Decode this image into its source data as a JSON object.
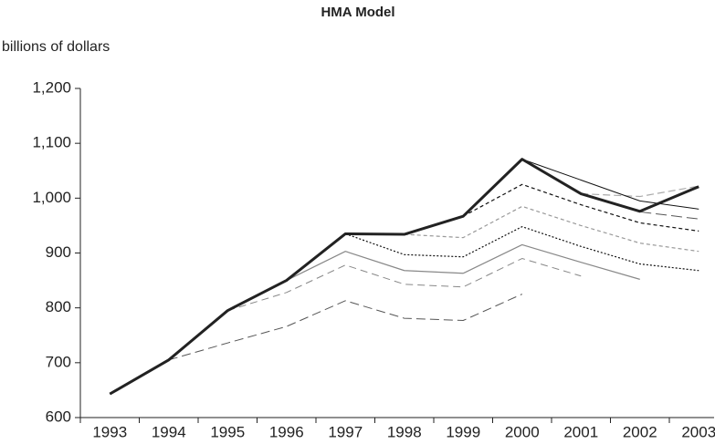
{
  "chart_data": {
    "type": "line",
    "title": "HMA Model",
    "y_label": "billions of dollars",
    "categories": [
      "1993",
      "1994",
      "1995",
      "1996",
      "1997",
      "1998",
      "1999",
      "2000",
      "2001",
      "2002",
      "2003"
    ],
    "ylim": [
      600,
      1200
    ],
    "yticks": [
      600,
      700,
      800,
      900,
      {
        "value": 1000,
        "label": "1,000"
      },
      {
        "value": 1100,
        "label": "1,100"
      },
      {
        "value": 1200,
        "label": "1,200"
      }
    ],
    "grid": false,
    "series": [
      {
        "color": "#555555",
        "dash": "10,5",
        "width": 1,
        "values": [
          null,
          705,
          736,
          766,
          813,
          781,
          777,
          825,
          null,
          null,
          null
        ]
      },
      {
        "color": "#888888",
        "dash": "8,5",
        "width": 1,
        "values": [
          null,
          null,
          795,
          828,
          878,
          843,
          838,
          890,
          858,
          null,
          null
        ]
      },
      {
        "color": "#888888",
        "dash": "",
        "width": 1.2,
        "values": [
          null,
          null,
          null,
          850,
          903,
          868,
          863,
          915,
          883,
          852,
          null
        ]
      },
      {
        "color": "#111111",
        "dash": "2,2",
        "width": 1.2,
        "values": [
          null,
          null,
          null,
          null,
          935,
          897,
          893,
          948,
          912,
          880,
          868
        ]
      },
      {
        "color": "#999999",
        "dash": "4,3",
        "width": 1.2,
        "values": [
          null,
          null,
          null,
          null,
          null,
          934,
          928,
          985,
          950,
          918,
          903
        ]
      },
      {
        "color": "#111111",
        "dash": "4,3",
        "width": 1.2,
        "values": [
          null,
          null,
          null,
          null,
          null,
          null,
          967,
          1025,
          988,
          955,
          940
        ]
      },
      {
        "color": "#555555",
        "dash": "12,5",
        "width": 1,
        "values": [
          null,
          null,
          null,
          null,
          null,
          null,
          null,
          null,
          1008,
          975,
          962
        ]
      },
      {
        "color": "#aaaaaa",
        "dash": "8,4",
        "width": 1.2,
        "values": [
          null,
          null,
          null,
          null,
          null,
          null,
          null,
          null,
          1008,
          1003,
          1022
        ]
      },
      {
        "color": "#111111",
        "dash": "",
        "width": 1,
        "values": [
          null,
          null,
          null,
          null,
          null,
          null,
          null,
          1071,
          1033,
          995,
          980
        ]
      },
      {
        "color": "#222222",
        "dash": "",
        "width": 3,
        "values": [
          643,
          705,
          795,
          850,
          935,
          934,
          967,
          1071,
          1008,
          976,
          1021
        ]
      }
    ]
  }
}
